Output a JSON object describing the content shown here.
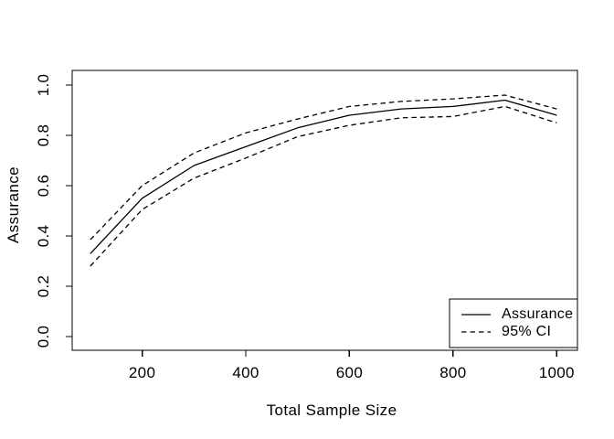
{
  "chart_data": {
    "type": "line",
    "title": "",
    "xlabel": "Total Sample Size",
    "ylabel": "Assurance",
    "x": [
      100,
      200,
      300,
      400,
      500,
      600,
      700,
      800,
      900,
      1000
    ],
    "series": [
      {
        "name": "Assurance",
        "line": "solid",
        "values": [
          0.33,
          0.55,
          0.68,
          0.755,
          0.83,
          0.88,
          0.905,
          0.915,
          0.94,
          0.88
        ]
      },
      {
        "name": "95% CI upper",
        "line": "dashed",
        "values": [
          0.385,
          0.6,
          0.73,
          0.81,
          0.865,
          0.915,
          0.935,
          0.945,
          0.96,
          0.905
        ]
      },
      {
        "name": "95% CI lower",
        "line": "dashed",
        "values": [
          0.28,
          0.505,
          0.63,
          0.71,
          0.795,
          0.84,
          0.87,
          0.875,
          0.915,
          0.85
        ]
      }
    ],
    "x_ticks": {
      "values": [
        200,
        400,
        600,
        800,
        1000
      ],
      "labels": [
        "200",
        "400",
        "600",
        "800",
        "1000"
      ]
    },
    "y_ticks": {
      "values": [
        0,
        0.2,
        0.4,
        0.6,
        0.8,
        1.0
      ],
      "labels": [
        "0.0",
        "0.2",
        "0.4",
        "0.6",
        "0.8",
        "1.0"
      ]
    },
    "xlim": [
      100,
      1000
    ],
    "ylim": [
      0,
      1
    ],
    "grid": false,
    "legend": {
      "position": "bottom-right",
      "entries": [
        {
          "label": "Assurance",
          "line": "solid"
        },
        {
          "label": "95% CI",
          "line": "dashed"
        }
      ]
    },
    "line_color": "#000000",
    "background": "#ffffff"
  }
}
